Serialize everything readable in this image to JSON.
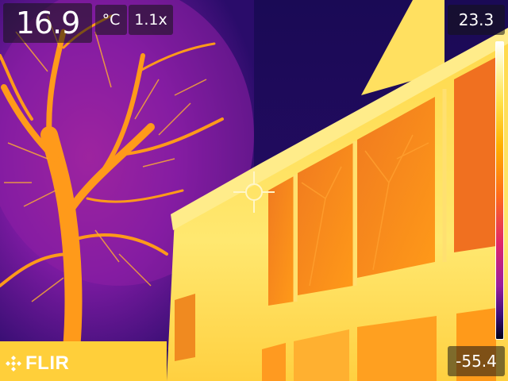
{
  "measurement": {
    "spot_temperature": "16.9",
    "unit": "°C",
    "zoom": "1.1x"
  },
  "scale": {
    "max": "23.3",
    "min": "-55.4",
    "palette": "iron",
    "colors": [
      "#ffffff",
      "#ffe24a",
      "#ffb000",
      "#ff6a1a",
      "#e0266b",
      "#9a1ea0",
      "#3c0f7a",
      "#000018"
    ]
  },
  "brand": {
    "logo_text": "FLIR",
    "logo_icon": "flir-diamond-icon"
  },
  "crosshair": {
    "icon": "crosshair-icon"
  }
}
